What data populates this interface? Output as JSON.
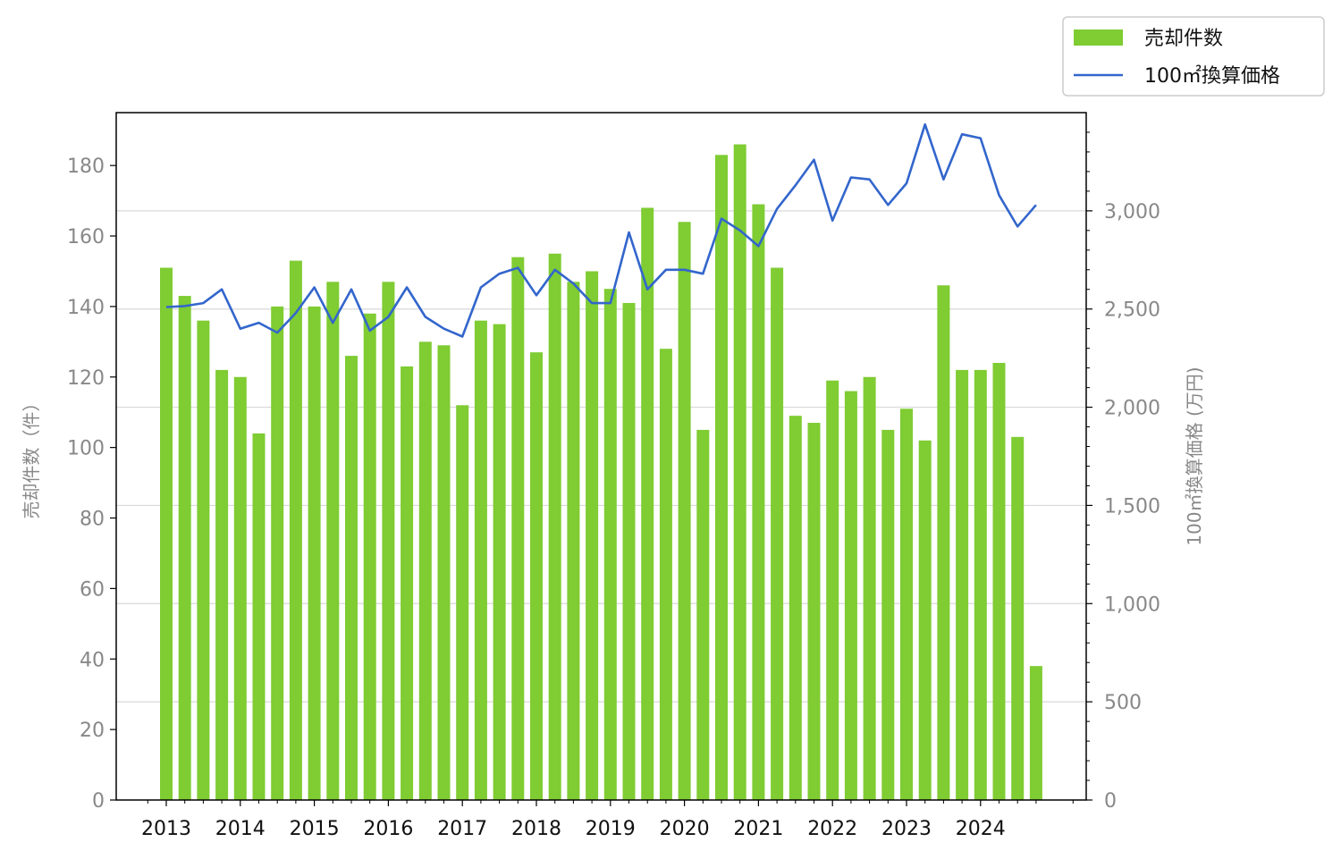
{
  "chart_data": {
    "type": "bar+line",
    "x_tick_labels": [
      "2013",
      "2014",
      "2015",
      "2016",
      "2017",
      "2018",
      "2019",
      "2020",
      "2021",
      "2022",
      "2023",
      "2024"
    ],
    "series": [
      {
        "name": "売却件数",
        "type": "bar",
        "axis": "left",
        "color": "#7fcc33",
        "values": [
          151,
          143,
          136,
          122,
          120,
          104,
          140,
          153,
          140,
          147,
          126,
          138,
          147,
          123,
          130,
          129,
          112,
          136,
          135,
          154,
          127,
          155,
          147,
          150,
          145,
          141,
          168,
          128,
          164,
          105,
          183,
          186,
          169,
          151,
          109,
          107,
          119,
          116,
          120,
          105,
          111,
          102,
          146,
          122,
          122,
          124,
          103,
          38
        ]
      },
      {
        "name": "100㎡換算価格",
        "type": "line",
        "axis": "right",
        "color": "#3366cc",
        "values": [
          2510,
          2515,
          2530,
          2600,
          2400,
          2430,
          2380,
          2480,
          2610,
          2430,
          2600,
          2390,
          2460,
          2610,
          2460,
          2400,
          2360,
          2610,
          2680,
          2710,
          2570,
          2700,
          2630,
          2530,
          2530,
          2890,
          2600,
          2700,
          2700,
          2680,
          2960,
          2900,
          2820,
          3010,
          3130,
          3260,
          2950,
          3170,
          3160,
          3030,
          3140,
          3440,
          3160,
          3390,
          3370,
          3080,
          2920,
          3030
        ]
      }
    ],
    "y_left": {
      "label": "売却件数（件）",
      "ylim": [
        0,
        195
      ],
      "ticks": [
        "0",
        "20",
        "40",
        "60",
        "80",
        "100",
        "120",
        "140",
        "160",
        "180"
      ]
    },
    "y_right": {
      "label": "100㎡換算価格 (万円)",
      "ylim": [
        0,
        3500
      ],
      "ticks": [
        "0",
        "500",
        "1,000",
        "1,500",
        "2,000",
        "2,500",
        "3,000"
      ]
    },
    "legend_position": "top-right, outside",
    "grid": "horizontal, right axis"
  }
}
